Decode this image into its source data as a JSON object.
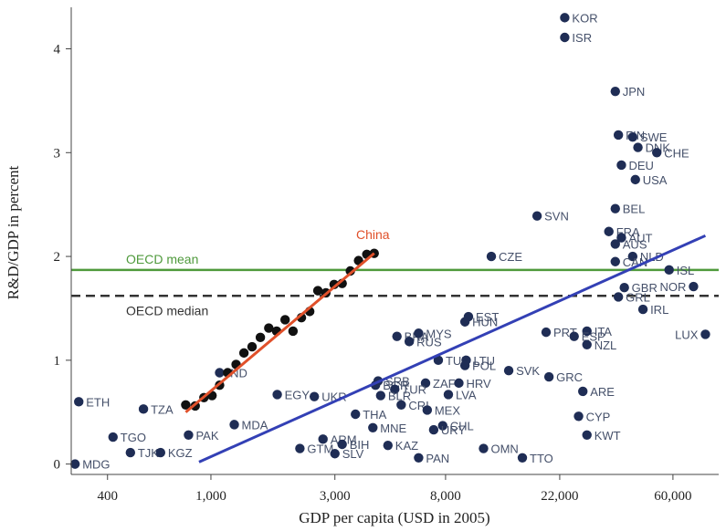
{
  "chart_data": {
    "type": "scatter",
    "xlabel": "GDP per capita (USD in 2005)",
    "ylabel": "R&D/GDP in percent",
    "x_scale": "log",
    "xlim": [
      290,
      90000
    ],
    "ylim": [
      -0.1,
      4.4
    ],
    "x_ticks": [
      400,
      1000,
      3000,
      8000,
      22000,
      60000
    ],
    "x_tick_labels": [
      "400",
      "1,000",
      "3,000",
      "8,000",
      "22,000",
      "60,000"
    ],
    "y_ticks": [
      0,
      1,
      2,
      3,
      4
    ],
    "grid": false,
    "colors": {
      "countries": "#1f2d55",
      "labels": "#45506a",
      "china_points": "#111111",
      "china_fit": "#e0502a",
      "oecd_mean": "#4f9a3c",
      "oecd_median": "#333333",
      "regression": "#3340b5"
    },
    "reference_lines": [
      {
        "label": "OECD mean",
        "y": 1.87,
        "color": "#4f9a3c",
        "style": "solid"
      },
      {
        "label": "OECD median",
        "y": 1.62,
        "color": "#333333",
        "style": "dashed"
      }
    ],
    "fit_lines": [
      {
        "name": "China",
        "x": [
          800,
          4250
        ],
        "y": [
          0.5,
          2.03
        ],
        "color": "#e0502a"
      },
      {
        "x": [
          900,
          80000
        ],
        "y": [
          0.02,
          2.2
        ],
        "color": "#3340b5"
      }
    ],
    "china_series": {
      "name": "China",
      "x": [
        800,
        870,
        940,
        1010,
        1080,
        1160,
        1250,
        1340,
        1440,
        1550,
        1670,
        1790,
        1930,
        2070,
        2230,
        2400,
        2580,
        2770,
        2980,
        3200,
        3440,
        3700,
        3980,
        4250
      ],
      "y": [
        0.57,
        0.56,
        0.64,
        0.66,
        0.76,
        0.88,
        0.96,
        1.07,
        1.13,
        1.22,
        1.31,
        1.28,
        1.39,
        1.28,
        1.41,
        1.47,
        1.67,
        1.65,
        1.73,
        1.74,
        1.86,
        1.96,
        2.02,
        2.03
      ]
    },
    "countries": [
      {
        "code": "KOR",
        "x": 23000,
        "y": 4.3
      },
      {
        "code": "ISR",
        "x": 23000,
        "y": 4.11
      },
      {
        "code": "JPN",
        "x": 36000,
        "y": 3.59
      },
      {
        "code": "FIN",
        "x": 37000,
        "y": 3.17
      },
      {
        "code": "SWE",
        "x": 42000,
        "y": 3.15
      },
      {
        "code": "DNK",
        "x": 44000,
        "y": 3.05
      },
      {
        "code": "CHE",
        "x": 52000,
        "y": 3.0
      },
      {
        "code": "DEU",
        "x": 38000,
        "y": 2.88
      },
      {
        "code": "USA",
        "x": 43000,
        "y": 2.74
      },
      {
        "code": "BEL",
        "x": 36000,
        "y": 2.46
      },
      {
        "code": "SVN",
        "x": 18000,
        "y": 2.39
      },
      {
        "code": "FRA",
        "x": 34000,
        "y": 2.24
      },
      {
        "code": "AUT",
        "x": 38000,
        "y": 2.18
      },
      {
        "code": "AUS",
        "x": 36000,
        "y": 2.12
      },
      {
        "code": "NLD",
        "x": 42000,
        "y": 2.0
      },
      {
        "code": "CAN",
        "x": 36000,
        "y": 1.95
      },
      {
        "code": "CZE",
        "x": 12000,
        "y": 2.0
      },
      {
        "code": "ISL",
        "x": 58000,
        "y": 1.87
      },
      {
        "code": "GBR",
        "x": 39000,
        "y": 1.7
      },
      {
        "code": "NOR",
        "x": 72000,
        "y": 1.71
      },
      {
        "code": "GRL",
        "x": 37000,
        "y": 1.61
      },
      {
        "code": "IRL",
        "x": 46000,
        "y": 1.49
      },
      {
        "code": "LUX",
        "x": 80000,
        "y": 1.25
      },
      {
        "code": "EST",
        "x": 9800,
        "y": 1.42
      },
      {
        "code": "HUN",
        "x": 9500,
        "y": 1.37
      },
      {
        "code": "BRA",
        "x": 5200,
        "y": 1.23
      },
      {
        "code": "RUS",
        "x": 5800,
        "y": 1.18
      },
      {
        "code": "MYS",
        "x": 6300,
        "y": 1.26
      },
      {
        "code": "PRT",
        "x": 19500,
        "y": 1.27
      },
      {
        "code": "ITA",
        "x": 28000,
        "y": 1.28
      },
      {
        "code": "ESP",
        "x": 25000,
        "y": 1.23
      },
      {
        "code": "NZL",
        "x": 28000,
        "y": 1.15
      },
      {
        "code": "TUN",
        "x": 7500,
        "y": 1.0
      },
      {
        "code": "LTU",
        "x": 9600,
        "y": 1.0
      },
      {
        "code": "POL",
        "x": 9500,
        "y": 0.95
      },
      {
        "code": "SVK",
        "x": 14000,
        "y": 0.9
      },
      {
        "code": "GRC",
        "x": 20000,
        "y": 0.84
      },
      {
        "code": "ARE",
        "x": 27000,
        "y": 0.7
      },
      {
        "code": "HRV",
        "x": 9000,
        "y": 0.78
      },
      {
        "code": "ZAF",
        "x": 6700,
        "y": 0.78
      },
      {
        "code": "SRB",
        "x": 4400,
        "y": 0.8
      },
      {
        "code": "BGR",
        "x": 4300,
        "y": 0.76
      },
      {
        "code": "LVA",
        "x": 8200,
        "y": 0.67
      },
      {
        "code": "TUR",
        "x": 5100,
        "y": 0.72
      },
      {
        "code": "BLR",
        "x": 4500,
        "y": 0.66
      },
      {
        "code": "CRI",
        "x": 5400,
        "y": 0.57
      },
      {
        "code": "MEX",
        "x": 6800,
        "y": 0.52
      },
      {
        "code": "UKR",
        "x": 2500,
        "y": 0.65
      },
      {
        "code": "EGY",
        "x": 1800,
        "y": 0.67
      },
      {
        "code": "IND",
        "x": 1080,
        "y": 0.88
      },
      {
        "code": "THA",
        "x": 3600,
        "y": 0.48
      },
      {
        "code": "ETH",
        "x": 310,
        "y": 0.6
      },
      {
        "code": "TZA",
        "x": 550,
        "y": 0.53
      },
      {
        "code": "PAK",
        "x": 820,
        "y": 0.28
      },
      {
        "code": "MDA",
        "x": 1230,
        "y": 0.38
      },
      {
        "code": "MNE",
        "x": 4200,
        "y": 0.35
      },
      {
        "code": "CHL",
        "x": 7800,
        "y": 0.37
      },
      {
        "code": "URY",
        "x": 7200,
        "y": 0.33
      },
      {
        "code": "CYP",
        "x": 26000,
        "y": 0.46
      },
      {
        "code": "KWT",
        "x": 28000,
        "y": 0.28
      },
      {
        "code": "TGO",
        "x": 420,
        "y": 0.26
      },
      {
        "code": "TJK",
        "x": 490,
        "y": 0.11
      },
      {
        "code": "KGZ",
        "x": 640,
        "y": 0.11
      },
      {
        "code": "MDG",
        "x": 300,
        "y": 0.0
      },
      {
        "code": "ARM",
        "x": 2700,
        "y": 0.24
      },
      {
        "code": "BIH",
        "x": 3200,
        "y": 0.19
      },
      {
        "code": "GTM",
        "x": 2200,
        "y": 0.15
      },
      {
        "code": "SLV",
        "x": 3000,
        "y": 0.1
      },
      {
        "code": "KAZ",
        "x": 4800,
        "y": 0.18
      },
      {
        "code": "OMN",
        "x": 11200,
        "y": 0.15
      },
      {
        "code": "PAN",
        "x": 6300,
        "y": 0.06
      },
      {
        "code": "TTO",
        "x": 15800,
        "y": 0.06
      }
    ]
  }
}
